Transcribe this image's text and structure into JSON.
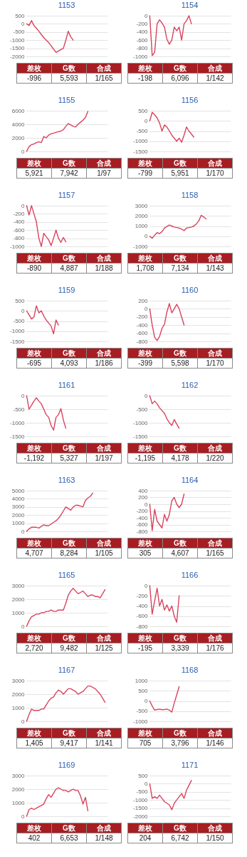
{
  "chart_data": [
    {
      "type": "line",
      "title": "1153",
      "categories": [
        null,
        null,
        null,
        null,
        null,
        null,
        null,
        null,
        null,
        null,
        null,
        null,
        null,
        null,
        null,
        null,
        null,
        null,
        null,
        null,
        null,
        null,
        null,
        null,
        null,
        null,
        null,
        null,
        null,
        null,
        null,
        null,
        null,
        null
      ],
      "values": [
        0,
        -100,
        200,
        -100,
        -270,
        -450,
        -650,
        -850,
        -1000,
        -1150,
        -1350,
        -1550,
        -1750,
        -1670,
        -1580,
        -1500,
        -1000,
        -450,
        -800,
        -1000,
        null,
        null,
        null,
        null,
        null,
        null,
        null,
        null,
        null,
        null,
        null,
        null,
        null,
        null
      ],
      "color": "#d9435e",
      "ylim": [
        -2000,
        500
      ],
      "yticks": [
        -2000,
        -1500,
        -1000,
        -500,
        0,
        500
      ],
      "grid": "y",
      "annotations": [
        "差枚",
        "G数",
        "合成",
        "-996",
        "5,593",
        "1/165"
      ]
    },
    {
      "type": "line",
      "title": "1154",
      "categories": [
        null,
        null,
        null,
        null,
        null,
        null,
        null,
        null,
        null,
        null,
        null,
        null,
        null,
        null,
        null,
        null,
        null,
        null,
        null,
        null,
        null,
        null,
        null,
        null,
        null,
        null,
        null,
        null,
        null,
        null,
        null,
        null,
        null,
        null
      ],
      "values": [
        0,
        -980,
        -900,
        -200,
        -100,
        -180,
        -280,
        -580,
        -700,
        -600,
        -280,
        -370,
        -280,
        -600,
        -200,
        -120,
        0,
        -200,
        null,
        null,
        null,
        null,
        null,
        null,
        null,
        null,
        null,
        null,
        null,
        null,
        null,
        null,
        null,
        null
      ],
      "color": "#d9435e",
      "ylim": [
        -1000,
        0
      ],
      "yticks": [
        -1000,
        -800,
        -600,
        -400,
        -200,
        0
      ],
      "grid": "y",
      "annotations": [
        "差枚",
        "G数",
        "合成",
        "-198",
        "6,096",
        "1/142"
      ]
    },
    {
      "type": "line",
      "title": "1155",
      "categories": [
        null,
        null,
        null,
        null,
        null,
        null,
        null,
        null,
        null,
        null,
        null,
        null,
        null,
        null,
        null,
        null,
        null,
        null,
        null,
        null,
        null,
        null,
        null,
        null,
        null,
        null,
        null,
        null,
        null,
        null,
        null,
        null,
        null,
        null
      ],
      "values": [
        0,
        700,
        1000,
        1100,
        1300,
        1400,
        1300,
        2200,
        2000,
        2400,
        2600,
        2700,
        2800,
        2900,
        3000,
        3200,
        3700,
        4100,
        3900,
        3700,
        3600,
        4000,
        4300,
        4600,
        5000,
        5900,
        null,
        null,
        null,
        null,
        null,
        null,
        null,
        null
      ],
      "color": "#d9435e",
      "ylim": [
        0,
        6000
      ],
      "yticks": [
        0,
        2000,
        4000,
        6000
      ],
      "grid": "y",
      "annotations": [
        "差枚",
        "G数",
        "合成",
        "5,921",
        "7,942",
        "1/97"
      ]
    },
    {
      "type": "line",
      "title": "1156",
      "categories": [
        null,
        null,
        null,
        null,
        null,
        null,
        null,
        null,
        null,
        null,
        null,
        null,
        null,
        null,
        null,
        null,
        null,
        null,
        null,
        null,
        null,
        null,
        null,
        null,
        null,
        null,
        null,
        null,
        null,
        null,
        null,
        null,
        null,
        null
      ],
      "values": [
        0,
        420,
        300,
        150,
        -100,
        -500,
        -200,
        -300,
        -500,
        -700,
        -850,
        -1000,
        -850,
        -1050,
        -700,
        -300,
        -500,
        -650,
        -800,
        null,
        null,
        null,
        null,
        null,
        null,
        null,
        null,
        null,
        null,
        null,
        null,
        null,
        null,
        null
      ],
      "color": "#d9435e",
      "ylim": [
        -1500,
        500
      ],
      "yticks": [
        -1500,
        -1000,
        -500,
        0,
        500
      ],
      "grid": "y",
      "annotations": [
        "差枚",
        "G数",
        "合成",
        "-799",
        "5,951",
        "1/170"
      ]
    },
    {
      "type": "line",
      "title": "1157",
      "categories": [
        null,
        null,
        null,
        null,
        null,
        null,
        null,
        null,
        null,
        null,
        null,
        null,
        null,
        null,
        null,
        null,
        null,
        null,
        null,
        null,
        null,
        null,
        null,
        null,
        null,
        null,
        null,
        null,
        null,
        null,
        null,
        null,
        null,
        null
      ],
      "values": [
        0,
        -230,
        0,
        -200,
        -400,
        -800,
        -1000,
        -680,
        -760,
        -840,
        -980,
        -800,
        -600,
        -800,
        -900,
        -780,
        -890,
        null,
        null,
        null,
        null,
        null,
        null,
        null,
        null,
        null,
        null,
        null,
        null,
        null,
        null,
        null,
        null,
        null
      ],
      "color": "#d9435e",
      "ylim": [
        -1000,
        0
      ],
      "yticks": [
        -1000,
        -800,
        -600,
        -400,
        -200,
        0
      ],
      "grid": "y",
      "annotations": [
        "差枚",
        "G数",
        "合成",
        "-890",
        "4,887",
        "1/188"
      ]
    },
    {
      "type": "line",
      "title": "1158",
      "categories": [
        null,
        null,
        null,
        null,
        null,
        null,
        null,
        null,
        null,
        null,
        null,
        null,
        null,
        null,
        null,
        null,
        null,
        null,
        null,
        null,
        null,
        null,
        null,
        null,
        null,
        null,
        null,
        null,
        null,
        null,
        null,
        null,
        null,
        null
      ],
      "values": [
        0,
        -200,
        100,
        350,
        250,
        450,
        800,
        950,
        1100,
        1000,
        900,
        850,
        800,
        700,
        550,
        800,
        850,
        900,
        1000,
        1200,
        1500,
        2050,
        1900,
        1700,
        null,
        null,
        null,
        null,
        null,
        null,
        null,
        null,
        null,
        null
      ],
      "color": "#d9435e",
      "ylim": [
        -1000,
        3000
      ],
      "yticks": [
        -1000,
        0,
        1000,
        2000,
        3000
      ],
      "grid": "y",
      "annotations": [
        "差枚",
        "G数",
        "合成",
        "1,708",
        "7,134",
        "1/143"
      ]
    },
    {
      "type": "line",
      "title": "1159",
      "categories": [
        null,
        null,
        null,
        null,
        null,
        null,
        null,
        null,
        null,
        null,
        null,
        null,
        null,
        null,
        null,
        null,
        null,
        null,
        null,
        null,
        null,
        null,
        null,
        null,
        null,
        null,
        null,
        null,
        null,
        null,
        null,
        null,
        null,
        null
      ],
      "values": [
        0,
        -200,
        -400,
        -300,
        250,
        -100,
        0,
        -250,
        -450,
        -600,
        -750,
        -1130,
        -450,
        -700,
        null,
        null,
        null,
        null,
        null,
        null,
        null,
        null,
        null,
        null,
        null,
        null,
        null,
        null,
        null,
        null,
        null,
        null,
        null,
        null
      ],
      "color": "#d9435e",
      "ylim": [
        -1500,
        500
      ],
      "yticks": [
        -1500,
        -1000,
        -500,
        0,
        500
      ],
      "grid": "y",
      "annotations": [
        "差枚",
        "G数",
        "合成",
        "-695",
        "4,093",
        "1/186"
      ]
    },
    {
      "type": "line",
      "title": "1160",
      "categories": [
        null,
        null,
        null,
        null,
        null,
        null,
        null,
        null,
        null,
        null,
        null,
        null,
        null,
        null,
        null,
        null,
        null,
        null,
        null,
        null,
        null,
        null,
        null,
        null,
        null,
        null,
        null,
        null,
        null,
        null,
        null,
        null,
        null,
        null
      ],
      "values": [
        0,
        -400,
        -700,
        -780,
        -680,
        -480,
        -380,
        -80,
        130,
        -100,
        0,
        110,
        0,
        -200,
        -400,
        null,
        null,
        null,
        null,
        null,
        null,
        null,
        null,
        null,
        null,
        null,
        null,
        null,
        null,
        null,
        null,
        null,
        null,
        null
      ],
      "color": "#d9435e",
      "ylim": [
        -800,
        200
      ],
      "yticks": [
        -800,
        -600,
        -400,
        -200,
        0,
        200
      ],
      "grid": "y",
      "annotations": [
        "差枚",
        "G数",
        "合成",
        "-399",
        "5,598",
        "1/170"
      ]
    },
    {
      "type": "line",
      "title": "1161",
      "categories": [
        null,
        null,
        null,
        null,
        null,
        null,
        null,
        null,
        null,
        null,
        null,
        null,
        null,
        null,
        null,
        null,
        null,
        null,
        null,
        null,
        null,
        null,
        null,
        null,
        null,
        null,
        null,
        null,
        null,
        null,
        null,
        null,
        null,
        null
      ],
      "values": [
        0,
        -500,
        -350,
        -200,
        -80,
        -200,
        -300,
        -500,
        -700,
        -800,
        -1100,
        -1270,
        -800,
        -700,
        -480,
        -900,
        -1200,
        null,
        null,
        null,
        null,
        null,
        null,
        null,
        null,
        null,
        null,
        null,
        null,
        null,
        null,
        null,
        null,
        null
      ],
      "color": "#d9435e",
      "ylim": [
        -1500,
        0
      ],
      "yticks": [
        -1500,
        -1000,
        -500,
        0
      ],
      "grid": "y",
      "annotations": [
        "差枚",
        "G数",
        "合成",
        "-1,192",
        "5,327",
        "1/197"
      ]
    },
    {
      "type": "line",
      "title": "1162",
      "categories": [
        null,
        null,
        null,
        null,
        null,
        null,
        null,
        null,
        null,
        null,
        null,
        null,
        null,
        null,
        null,
        null,
        null,
        null,
        null,
        null,
        null,
        null,
        null,
        null,
        null,
        null,
        null,
        null,
        null,
        null,
        null,
        null,
        null,
        null
      ],
      "values": [
        0,
        -300,
        -200,
        -300,
        -450,
        -550,
        -650,
        -850,
        -1000,
        -1100,
        -880,
        -1050,
        -1200,
        null,
        null,
        null,
        null,
        null,
        null,
        null,
        null,
        null,
        null,
        null,
        null,
        null,
        null,
        null,
        null,
        null,
        null,
        null,
        null,
        null
      ],
      "color": "#d9435e",
      "ylim": [
        -1500,
        0
      ],
      "yticks": [
        -1500,
        -1000,
        -500,
        0
      ],
      "grid": "y",
      "annotations": [
        "差枚",
        "G数",
        "合成",
        "-1,195",
        "4,178",
        "1/220"
      ]
    },
    {
      "type": "line",
      "title": "1163",
      "categories": [
        null,
        null,
        null,
        null,
        null,
        null,
        null,
        null,
        null,
        null,
        null,
        null,
        null,
        null,
        null,
        null,
        null,
        null,
        null,
        null,
        null,
        null,
        null,
        null,
        null,
        null,
        null,
        null,
        null,
        null,
        null,
        null,
        null,
        null
      ],
      "values": [
        0,
        300,
        500,
        500,
        500,
        400,
        600,
        800,
        700,
        700,
        900,
        1100,
        1300,
        1600,
        2000,
        2500,
        3000,
        2800,
        2600,
        3000,
        3200,
        3200,
        3100,
        3000,
        3800,
        4100,
        4300,
        4700,
        null,
        null,
        null,
        null,
        null,
        null
      ],
      "color": "#d9435e",
      "ylim": [
        0,
        5000
      ],
      "yticks": [
        0,
        1000,
        2000,
        3000,
        4000,
        5000
      ],
      "grid": "y",
      "annotations": [
        "差枚",
        "G数",
        "合成",
        "4,707",
        "8,284",
        "1/105"
      ]
    },
    {
      "type": "line",
      "title": "1164",
      "categories": [
        null,
        null,
        null,
        null,
        null,
        null,
        null,
        null,
        null,
        null,
        null,
        null,
        null,
        null,
        null,
        null,
        null,
        null,
        null,
        null,
        null,
        null,
        null,
        null,
        null,
        null,
        null,
        null,
        null,
        null,
        null,
        null,
        null,
        null
      ],
      "values": [
        0,
        -780,
        -150,
        -500,
        -600,
        -700,
        -300,
        -500,
        -300,
        100,
        200,
        0,
        -100,
        0,
        300,
        null,
        null,
        null,
        null,
        null,
        null,
        null,
        null,
        null,
        null,
        null,
        null,
        null,
        null,
        null,
        null,
        null,
        null,
        null
      ],
      "color": "#d9435e",
      "ylim": [
        -800,
        400
      ],
      "yticks": [
        -800,
        -600,
        -400,
        -200,
        0,
        200,
        400
      ],
      "grid": "y",
      "annotations": [
        "差枚",
        "G数",
        "合成",
        "305",
        "4,607",
        "1/165"
      ]
    },
    {
      "type": "line",
      "title": "1165",
      "categories": [
        null,
        null,
        null,
        null,
        null,
        null,
        null,
        null,
        null,
        null,
        null,
        null,
        null,
        null,
        null,
        null,
        null,
        null,
        null,
        null,
        null,
        null,
        null,
        null,
        null,
        null,
        null,
        null,
        null,
        null,
        null,
        null,
        null,
        null
      ],
      "values": [
        0,
        400,
        700,
        800,
        900,
        900,
        1000,
        1000,
        1100,
        1100,
        1200,
        1100,
        1100,
        1200,
        1200,
        1200,
        1700,
        2300,
        2600,
        2800,
        2600,
        2400,
        2500,
        2600,
        2400,
        2200,
        2300,
        2300,
        2200,
        2200,
        2100,
        2400,
        2700,
        null
      ],
      "color": "#d9435e",
      "ylim": [
        0,
        3000
      ],
      "yticks": [
        0,
        1000,
        2000,
        3000
      ],
      "grid": "y",
      "annotations": [
        "差枚",
        "G数",
        "合成",
        "2,720",
        "9,482",
        "1/125"
      ]
    },
    {
      "type": "line",
      "title": "1166",
      "categories": [
        null,
        null,
        null,
        null,
        null,
        null,
        null,
        null,
        null,
        null,
        null,
        null,
        null,
        null,
        null,
        null,
        null,
        null,
        null,
        null,
        null,
        null,
        null,
        null,
        null,
        null,
        null,
        null,
        null,
        null,
        null,
        null,
        null,
        null
      ],
      "values": [
        0,
        -560,
        -300,
        -50,
        -400,
        -270,
        -480,
        -380,
        -500,
        -400,
        -600,
        -720,
        -200,
        null,
        null,
        null,
        null,
        null,
        null,
        null,
        null,
        null,
        null,
        null,
        null,
        null,
        null,
        null,
        null,
        null,
        null,
        null,
        null,
        null
      ],
      "color": "#d9435e",
      "ylim": [
        -800,
        0
      ],
      "yticks": [
        -800,
        -600,
        -400,
        -200,
        0
      ],
      "grid": "y",
      "annotations": [
        "差枚",
        "G数",
        "合成",
        "-195",
        "3,339",
        "1/176"
      ]
    },
    {
      "type": "line",
      "title": "1167",
      "categories": [
        null,
        null,
        null,
        null,
        null,
        null,
        null,
        null,
        null,
        null,
        null,
        null,
        null,
        null,
        null,
        null,
        null,
        null,
        null,
        null,
        null,
        null,
        null,
        null,
        null,
        null,
        null,
        null,
        null,
        null,
        null,
        null,
        null,
        null
      ],
      "values": [
        0,
        500,
        900,
        800,
        800,
        800,
        900,
        900,
        1200,
        1500,
        1700,
        1800,
        2100,
        2300,
        2200,
        2000,
        2200,
        2400,
        2400,
        2300,
        2200,
        2000,
        2100,
        2200,
        2400,
        2600,
        2600,
        2500,
        2400,
        2200,
        2000,
        1700,
        1400,
        null
      ],
      "color": "#d9435e",
      "ylim": [
        0,
        3000
      ],
      "yticks": [
        0,
        1000,
        2000,
        3000
      ],
      "grid": "y",
      "annotations": [
        "差枚",
        "G数",
        "合成",
        "1,405",
        "9,417",
        "1/141"
      ]
    },
    {
      "type": "line",
      "title": "1168",
      "categories": [
        null,
        null,
        null,
        null,
        null,
        null,
        null,
        null,
        null,
        null,
        null,
        null,
        null,
        null,
        null,
        null,
        null,
        null,
        null,
        null,
        null,
        null,
        null,
        null,
        null,
        null,
        null,
        null,
        null,
        null,
        null,
        null,
        null,
        null
      ],
      "values": [
        0,
        -250,
        -450,
        -420,
        -400,
        -430,
        -420,
        -400,
        -450,
        -550,
        -100,
        300,
        700,
        null,
        null,
        null,
        null,
        null,
        null,
        null,
        null,
        null,
        null,
        null,
        null,
        null,
        null,
        null,
        null,
        null,
        null,
        null,
        null,
        null
      ],
      "color": "#d9435e",
      "ylim": [
        -1000,
        1000
      ],
      "yticks": [
        -1000,
        -500,
        0,
        500,
        1000
      ],
      "grid": "y",
      "annotations": [
        "差枚",
        "G数",
        "合成",
        "705",
        "3,796",
        "1/146"
      ]
    },
    {
      "type": "line",
      "title": "1169",
      "categories": [
        null,
        null,
        null,
        null,
        null,
        null,
        null,
        null,
        null,
        null,
        null,
        null,
        null,
        null,
        null,
        null,
        null,
        null,
        null,
        null,
        null,
        null,
        null,
        null,
        null,
        null,
        null,
        null,
        null,
        null,
        null,
        null,
        null,
        null
      ],
      "values": [
        0,
        500,
        600,
        500,
        600,
        700,
        800,
        900,
        1300,
        1600,
        1400,
        1700,
        2000,
        2100,
        2000,
        1900,
        1900,
        1800,
        1900,
        2000,
        1900,
        1900,
        1500,
        900,
        1400,
        400,
        null,
        null,
        null,
        null,
        null,
        null,
        null,
        null
      ],
      "color": "#d9435e",
      "ylim": [
        0,
        3000
      ],
      "yticks": [
        0,
        1000,
        2000,
        3000
      ],
      "grid": "y",
      "annotations": [
        "差枚",
        "G数",
        "合成",
        "402",
        "6,653",
        "1/148"
      ]
    },
    {
      "type": "line",
      "title": "1171",
      "categories": [
        null,
        null,
        null,
        null,
        null,
        null,
        null,
        null,
        null,
        null,
        null,
        null,
        null,
        null,
        null,
        null,
        null,
        null,
        null,
        null,
        null,
        null,
        null,
        null,
        null,
        null,
        null,
        null,
        null,
        null,
        null,
        null,
        null,
        null
      ],
      "values": [
        0,
        -900,
        -800,
        -900,
        -700,
        -900,
        -1100,
        -1200,
        -1300,
        -1600,
        -1200,
        -1000,
        -800,
        -600,
        -900,
        -400,
        -100,
        200,
        null,
        null,
        null,
        null,
        null,
        null,
        null,
        null,
        null,
        null,
        null,
        null,
        null,
        null,
        null,
        null
      ],
      "color": "#d9435e",
      "ylim": [
        -2000,
        500
      ],
      "yticks": [
        -2000,
        -1500,
        -1000,
        -500,
        0,
        500
      ],
      "grid": "y",
      "annotations": [
        "差枚",
        "G数",
        "合成",
        "204",
        "6,742",
        "1/150"
      ]
    }
  ]
}
